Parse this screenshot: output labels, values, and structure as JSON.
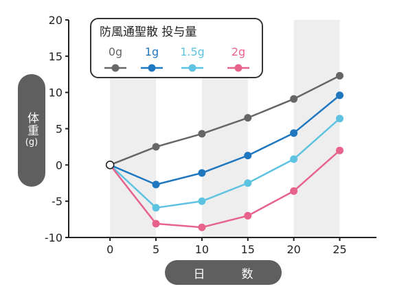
{
  "chart_data": {
    "type": "line",
    "title": "",
    "xlabel": "日　数",
    "ylabel": {
      "line1": "体重",
      "line2": "(g)"
    },
    "x": [
      0,
      5,
      10,
      15,
      20,
      25
    ],
    "xlim": [
      -4.5,
      29
    ],
    "ylim": [
      -10,
      20
    ],
    "xticks": [
      "0",
      "5",
      "10",
      "15",
      "20",
      "25"
    ],
    "yticks": [
      "20",
      "15",
      "10",
      "5",
      "0",
      "-5",
      "-10"
    ],
    "legend": {
      "title": "防風通聖散 投与量",
      "placement": "top-left"
    },
    "grid": "alternating vertical bands",
    "series": [
      {
        "name": "0g",
        "color": "#666666",
        "values": [
          0,
          2.5,
          4.3,
          6.5,
          9.1,
          12.3
        ]
      },
      {
        "name": "1g",
        "color": "#1f77c0",
        "values": [
          0,
          -2.7,
          -1.1,
          1.3,
          4.4,
          9.6
        ]
      },
      {
        "name": "1.5g",
        "color": "#5ec3e0",
        "values": [
          0,
          -5.9,
          -5.0,
          -2.5,
          0.8,
          6.4
        ]
      },
      {
        "name": "2g",
        "color": "#e8638c",
        "values": [
          0,
          -8.1,
          -8.6,
          -7.0,
          -3.6,
          2.0
        ]
      }
    ]
  }
}
